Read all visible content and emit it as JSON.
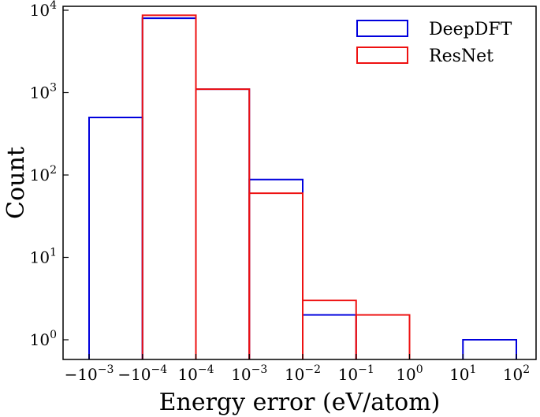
{
  "chart_data": {
    "type": "histogram",
    "xlabel": "Energy error (eV/atom)",
    "ylabel": "Count",
    "yscale": "log",
    "ylim": [
      0.6,
      10000
    ],
    "grid": false,
    "legend_position": "top-right",
    "bin_edges": [
      {
        "base": "−10",
        "exp": "−3"
      },
      {
        "base": "−10",
        "exp": "−4"
      },
      {
        "base": "10",
        "exp": "−4"
      },
      {
        "base": "10",
        "exp": "−3"
      },
      {
        "base": "10",
        "exp": "−2"
      },
      {
        "base": "10",
        "exp": "−1"
      },
      {
        "base": "10",
        "exp": "0"
      },
      {
        "base": "10",
        "exp": "1"
      },
      {
        "base": "10",
        "exp": "2"
      }
    ],
    "y_ticks": [
      {
        "value": 1,
        "base": "10",
        "exp": "0"
      },
      {
        "value": 10,
        "base": "10",
        "exp": "1"
      },
      {
        "value": 100,
        "base": "10",
        "exp": "2"
      },
      {
        "value": 1000,
        "base": "10",
        "exp": "3"
      },
      {
        "value": 10000,
        "base": "10",
        "exp": "4"
      }
    ],
    "series": [
      {
        "name": "DeepDFT",
        "color": "#0000dd",
        "counts": [
          500,
          8000,
          1100,
          88,
          2,
          0,
          0,
          1
        ]
      },
      {
        "name": "ResNet",
        "color": "#ee1111",
        "counts": [
          0,
          8700,
          1100,
          60,
          3,
          2,
          0,
          0
        ]
      }
    ]
  }
}
